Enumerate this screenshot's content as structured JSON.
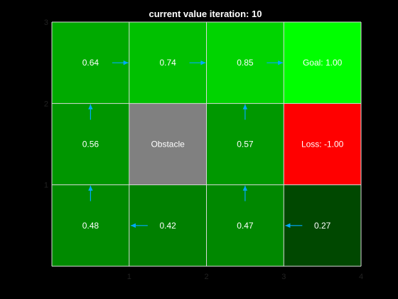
{
  "chart_data": {
    "type": "heatmap",
    "title": "current value iteration: 10",
    "xlim": [
      0,
      4
    ],
    "ylim": [
      0,
      3
    ],
    "x_ticks": [
      "1",
      "2",
      "3",
      "4"
    ],
    "y_ticks": [
      "1",
      "2",
      "3"
    ],
    "grid": true,
    "cells": [
      {
        "id": "r3c1",
        "col": 1,
        "row": 3,
        "label": "0.64",
        "value": 0.64,
        "color": "#00aa00",
        "arrow": "right"
      },
      {
        "id": "r3c2",
        "col": 2,
        "row": 3,
        "label": "0.74",
        "value": 0.74,
        "color": "#00c000",
        "arrow": "right"
      },
      {
        "id": "r3c3",
        "col": 3,
        "row": 3,
        "label": "0.85",
        "value": 0.85,
        "color": "#00d400",
        "arrow": "right"
      },
      {
        "id": "r3c4",
        "col": 4,
        "row": 3,
        "label": "Goal: 1.00",
        "value": 1.0,
        "color": "#00ff00",
        "arrow": null
      },
      {
        "id": "r2c1",
        "col": 1,
        "row": 2,
        "label": "0.56",
        "value": 0.56,
        "color": "#009600",
        "arrow": "up"
      },
      {
        "id": "r2c2",
        "col": 2,
        "row": 2,
        "label": "Obstacle",
        "value": null,
        "color": "#808080",
        "arrow": null
      },
      {
        "id": "r2c3",
        "col": 3,
        "row": 2,
        "label": "0.57",
        "value": 0.57,
        "color": "#009800",
        "arrow": "up"
      },
      {
        "id": "r2c4",
        "col": 4,
        "row": 2,
        "label": "Loss: -1.00",
        "value": -1.0,
        "color": "#ff0000",
        "arrow": null
      },
      {
        "id": "r1c1",
        "col": 1,
        "row": 1,
        "label": "0.48",
        "value": 0.48,
        "color": "#008a00",
        "arrow": "up"
      },
      {
        "id": "r1c2",
        "col": 2,
        "row": 1,
        "label": "0.42",
        "value": 0.42,
        "color": "#008000",
        "arrow": "left"
      },
      {
        "id": "r1c3",
        "col": 3,
        "row": 1,
        "label": "0.47",
        "value": 0.47,
        "color": "#008800",
        "arrow": "up"
      },
      {
        "id": "r1c4",
        "col": 4,
        "row": 1,
        "label": "0.27",
        "value": 0.27,
        "color": "#004800",
        "arrow": "left"
      }
    ],
    "colors": {
      "background": "#000000",
      "grid_line": "#d8d8d8",
      "arrow": "#00aaff",
      "text": "#ffffff",
      "tick": "#222222"
    }
  }
}
